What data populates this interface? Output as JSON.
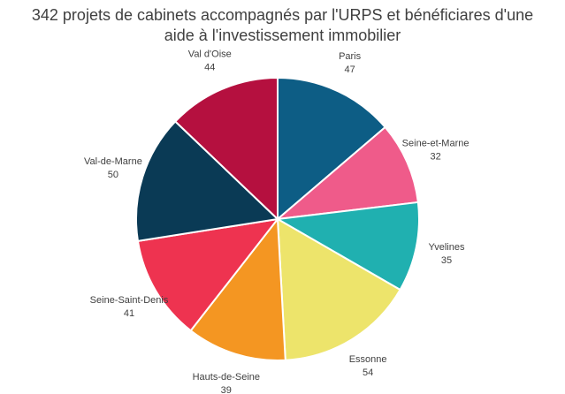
{
  "chart_data": {
    "type": "pie",
    "title_lines": [
      "342 projets de cabinets accompagnés par l'URPS et bénéficiares d'une",
      "aide à l'investissement immobilier"
    ],
    "legend": "none",
    "slices": [
      {
        "label": "Paris",
        "value": 47,
        "color": "#0d5d85"
      },
      {
        "label": "Seine-et-Marne",
        "value": 32,
        "color": "#ef5b8a"
      },
      {
        "label": "Yvelines",
        "value": 35,
        "color": "#20b0b0"
      },
      {
        "label": "Essonne",
        "value": 54,
        "color": "#ede46b"
      },
      {
        "label": "Hauts-de-Seine",
        "value": 39,
        "color": "#f49622"
      },
      {
        "label": "Seine-Saint-Denis",
        "value": 41,
        "color": "#ee3350"
      },
      {
        "label": "Val-de-Marne",
        "value": 50,
        "color": "#0a3a55"
      },
      {
        "label": "Val d'Oise",
        "value": 44,
        "color": "#b5103f"
      }
    ]
  }
}
